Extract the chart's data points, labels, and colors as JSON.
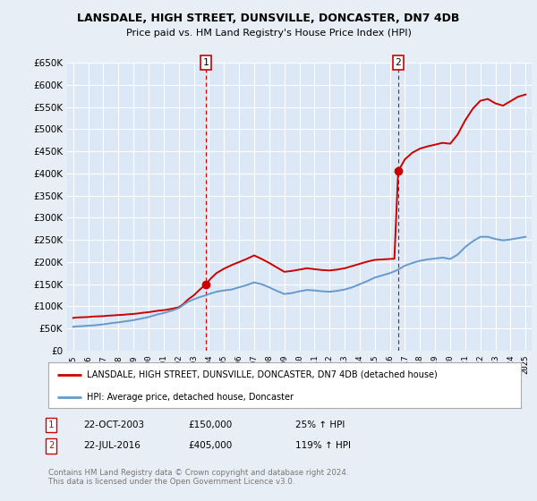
{
  "title_line1": "LANSDALE, HIGH STREET, DUNSVILLE, DONCASTER, DN7 4DB",
  "title_line2": "Price paid vs. HM Land Registry's House Price Index (HPI)",
  "background_color": "#e8eef5",
  "plot_bg_color": "#dce8f5",
  "ylim": [
    0,
    650000
  ],
  "yticks": [
    0,
    50000,
    100000,
    150000,
    200000,
    250000,
    300000,
    350000,
    400000,
    450000,
    500000,
    550000,
    600000,
    650000
  ],
  "xlim_start": 1994.6,
  "xlim_end": 2025.4,
  "legend_label_red": "LANSDALE, HIGH STREET, DUNSVILLE, DONCASTER, DN7 4DB (detached house)",
  "legend_label_blue": "HPI: Average price, detached house, Doncaster",
  "footer": "Contains HM Land Registry data © Crown copyright and database right 2024.\nThis data is licensed under the Open Government Licence v3.0.",
  "marker1_label": "1",
  "marker1_date": "22-OCT-2003",
  "marker1_price": "£150,000",
  "marker1_hpi": "25% ↑ HPI",
  "marker1_x": 2003.81,
  "marker1_y": 150000,
  "marker2_label": "2",
  "marker2_date": "22-JUL-2016",
  "marker2_price": "£405,000",
  "marker2_hpi": "119% ↑ HPI",
  "marker2_x": 2016.55,
  "marker2_y": 405000,
  "red_color": "#cc0000",
  "blue_color": "#6699cc",
  "red_x": [
    1995.0,
    1995.3,
    1995.6,
    1996.0,
    1996.3,
    1996.6,
    1997.0,
    1997.3,
    1997.6,
    1998.0,
    1998.3,
    1998.6,
    1999.0,
    1999.3,
    1999.6,
    2000.0,
    2000.3,
    2000.6,
    2001.0,
    2001.3,
    2001.6,
    2002.0,
    2002.3,
    2002.6,
    2003.0,
    2003.4,
    2003.81,
    2004.1,
    2004.5,
    2005.0,
    2005.5,
    2006.0,
    2006.5,
    2007.0,
    2007.5,
    2008.0,
    2008.5,
    2009.0,
    2009.5,
    2010.0,
    2010.5,
    2011.0,
    2011.5,
    2012.0,
    2012.5,
    2013.0,
    2013.5,
    2014.0,
    2014.5,
    2015.0,
    2015.5,
    2016.0,
    2016.3,
    2016.55,
    2017.0,
    2017.5,
    2018.0,
    2018.5,
    2019.0,
    2019.5,
    2020.0,
    2020.5,
    2021.0,
    2021.5,
    2022.0,
    2022.5,
    2023.0,
    2023.5,
    2024.0,
    2024.5,
    2025.0
  ],
  "red_y": [
    74000,
    75000,
    75500,
    76000,
    77000,
    77500,
    78000,
    79000,
    79500,
    80500,
    81000,
    82000,
    83000,
    84000,
    85500,
    87000,
    88500,
    90000,
    91500,
    93000,
    95000,
    98000,
    105000,
    115000,
    125000,
    138000,
    150000,
    162000,
    175000,
    185000,
    193000,
    200000,
    207000,
    215000,
    207000,
    198000,
    188000,
    178000,
    180000,
    183000,
    186000,
    184000,
    182000,
    181000,
    183000,
    186000,
    191000,
    196000,
    201000,
    205000,
    206000,
    207000,
    207500,
    405000,
    432000,
    447000,
    456000,
    461000,
    465000,
    469000,
    467000,
    488000,
    520000,
    546000,
    564000,
    568000,
    558000,
    553000,
    563000,
    573000,
    578000
  ],
  "blue_x": [
    1995.0,
    1995.3,
    1995.6,
    1996.0,
    1996.3,
    1996.6,
    1997.0,
    1997.3,
    1997.6,
    1998.0,
    1998.3,
    1998.6,
    1999.0,
    1999.3,
    1999.6,
    2000.0,
    2000.3,
    2000.6,
    2001.0,
    2001.3,
    2001.6,
    2002.0,
    2002.3,
    2002.6,
    2003.0,
    2003.4,
    2003.8,
    2004.1,
    2004.5,
    2005.0,
    2005.5,
    2006.0,
    2006.5,
    2007.0,
    2007.5,
    2008.0,
    2008.5,
    2009.0,
    2009.5,
    2010.0,
    2010.5,
    2011.0,
    2011.5,
    2012.0,
    2012.5,
    2013.0,
    2013.5,
    2014.0,
    2014.5,
    2015.0,
    2015.5,
    2016.0,
    2016.5,
    2017.0,
    2017.5,
    2018.0,
    2018.5,
    2019.0,
    2019.5,
    2020.0,
    2020.5,
    2021.0,
    2021.5,
    2022.0,
    2022.5,
    2023.0,
    2023.5,
    2024.0,
    2024.5,
    2025.0
  ],
  "blue_y": [
    54000,
    55000,
    55500,
    56500,
    57000,
    58000,
    59500,
    61000,
    62500,
    64000,
    65500,
    67000,
    69000,
    71000,
    73000,
    76000,
    79000,
    82000,
    85000,
    88000,
    91000,
    96000,
    103000,
    110000,
    116000,
    121000,
    125000,
    129000,
    133000,
    136000,
    138000,
    143000,
    148000,
    154000,
    150000,
    143000,
    135000,
    128000,
    130000,
    134000,
    137000,
    136000,
    134000,
    133000,
    135000,
    138000,
    143000,
    150000,
    157000,
    165000,
    170000,
    175000,
    182000,
    192000,
    198000,
    203000,
    206000,
    208000,
    210000,
    207000,
    217000,
    234000,
    247000,
    257000,
    257000,
    252000,
    249000,
    251000,
    254000,
    257000
  ]
}
